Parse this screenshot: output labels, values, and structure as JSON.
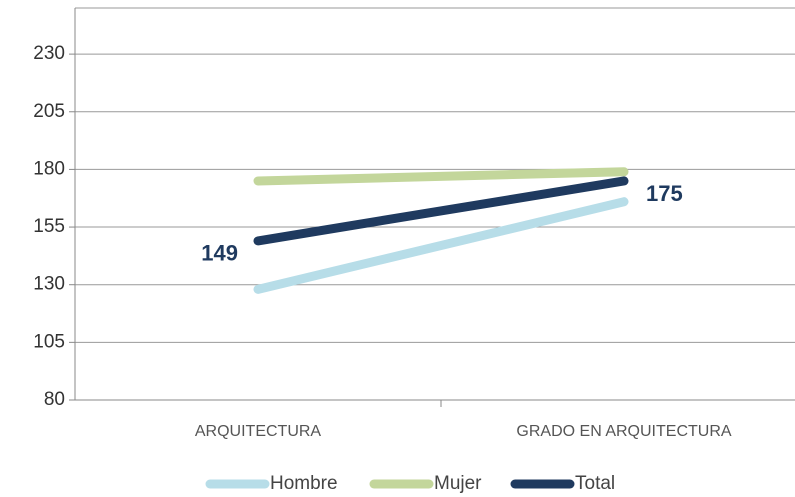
{
  "chart_data": {
    "type": "line",
    "categories": [
      "ARQUITECTURA",
      "GRADO EN ARQUITECTURA"
    ],
    "series": [
      {
        "name": "Hombre",
        "color": "#b7dde8",
        "values": [
          128,
          166
        ]
      },
      {
        "name": "Mujer",
        "color": "#c3d69b",
        "values": [
          175,
          179
        ]
      },
      {
        "name": "Total",
        "color": "#1f3a5f",
        "values": [
          149,
          175
        ],
        "labeled": true
      }
    ],
    "ylim": [
      80,
      250
    ],
    "yticks": [
      80,
      105,
      130,
      155,
      180,
      205,
      230
    ],
    "grid": true,
    "legend": "bottom"
  }
}
